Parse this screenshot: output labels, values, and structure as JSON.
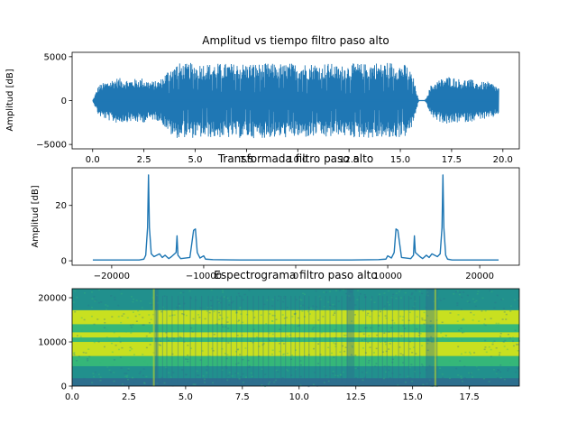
{
  "chart_data": [
    {
      "type": "line",
      "title": "Amplitud vs tiempo filtro paso alto",
      "xlabel": "",
      "ylabel": "Amplitud [dB]",
      "xlim": [
        -1.0,
        20.8
      ],
      "ylim": [
        -5500,
        5500
      ],
      "xticks": [
        0.0,
        2.5,
        5.0,
        7.5,
        10.0,
        12.5,
        15.0,
        17.5,
        20.0
      ],
      "xtick_labels": [
        "0.0",
        "2.5",
        "5.0",
        "7.5",
        "10.0",
        "12.5",
        "15.0",
        "17.5",
        "20.0"
      ],
      "yticks": [
        -5000,
        0,
        5000
      ],
      "ytick_labels": [
        "−5000",
        "0",
        "5000"
      ],
      "color": "#1f77b4",
      "series": [
        {
          "x": [
            0.0,
            0.3,
            0.6,
            0.9,
            1.2,
            1.5,
            1.8,
            2.1,
            2.4,
            2.7,
            3.0,
            3.3,
            3.6,
            3.9,
            4.2,
            4.5,
            4.8,
            5.1,
            5.4,
            5.7,
            6.0,
            6.3,
            6.6,
            6.9,
            7.2,
            7.5,
            7.8,
            8.1,
            8.4,
            8.7,
            9.0,
            9.3,
            9.6,
            9.9,
            10.2,
            10.5,
            10.8,
            11.1,
            11.4,
            11.7,
            12.0,
            12.3,
            12.6,
            12.9,
            13.2,
            13.5,
            13.8,
            14.1,
            14.4,
            14.7,
            15.0,
            15.3,
            15.6,
            15.9,
            16.2,
            16.5,
            16.8,
            17.1,
            17.4,
            17.7,
            18.0,
            18.3,
            18.6,
            18.9,
            19.2,
            19.5,
            19.8
          ],
          "envelope": [
            0,
            1800,
            2100,
            2400,
            2600,
            2500,
            2400,
            2500,
            2600,
            2300,
            2200,
            2400,
            3300,
            4200,
            4300,
            4200,
            4300,
            4200,
            4300,
            4200,
            4300,
            4200,
            4300,
            4200,
            4300,
            4200,
            4300,
            4200,
            4300,
            4200,
            4300,
            4200,
            4300,
            4200,
            4300,
            4200,
            4300,
            4200,
            4300,
            4200,
            3900,
            4100,
            4200,
            4300,
            4200,
            4300,
            4400,
            4200,
            4500,
            4300,
            4200,
            4100,
            3000,
            0,
            0,
            1800,
            2300,
            2600,
            2800,
            2600,
            2400,
            2500,
            2300,
            2100,
            2200,
            2000,
            1500
          ]
        }
      ]
    },
    {
      "type": "line",
      "title": "Transformada filtro paso alto",
      "xlabel": "",
      "ylabel": "Amplitud [dB]",
      "xlim": [
        -24300,
        24300
      ],
      "ylim": [
        -1.6,
        33.6
      ],
      "xticks": [
        -20000,
        -10000,
        0,
        10000,
        20000
      ],
      "xtick_labels": [
        "−20000",
        "−10000",
        "0",
        "10000",
        "20000"
      ],
      "yticks": [
        0,
        20
      ],
      "ytick_labels": [
        "0",
        "20"
      ],
      "color": "#1f77b4",
      "series": [
        {
          "x": [
            -22050,
            -17000,
            -16500,
            -16300,
            -16100,
            -16000,
            -15900,
            -15700,
            -15400,
            -14800,
            -14500,
            -14200,
            -13800,
            -13500,
            -13000,
            -12900,
            -12800,
            -12500,
            -11500,
            -11100,
            -10900,
            -10700,
            -10400,
            -10000,
            -9800,
            -9000,
            -6000,
            0,
            6000,
            9000,
            9800,
            10000,
            10400,
            10700,
            10900,
            11100,
            11500,
            12500,
            12800,
            12900,
            13000,
            13500,
            13800,
            14200,
            14500,
            14800,
            15400,
            15700,
            15900,
            16000,
            16100,
            16300,
            16500,
            17000,
            22050
          ],
          "y": [
            0.3,
            0.3,
            0.6,
            2.0,
            12.0,
            31.0,
            12.0,
            2.5,
            1.5,
            2.5,
            1.2,
            2.0,
            0.8,
            1.5,
            3.0,
            9.0,
            2.0,
            0.8,
            1.2,
            11.0,
            11.5,
            3.0,
            1.0,
            1.8,
            0.6,
            0.4,
            0.3,
            0.3,
            0.3,
            0.4,
            0.6,
            1.8,
            1.0,
            3.0,
            11.5,
            11.0,
            1.2,
            0.8,
            2.0,
            9.0,
            3.0,
            1.5,
            0.8,
            2.0,
            1.2,
            2.5,
            1.5,
            2.5,
            12.0,
            31.0,
            12.0,
            2.0,
            0.6,
            0.3,
            0.3
          ]
        }
      ]
    },
    {
      "type": "heatmap",
      "title": "Espectrograma filtro paso alto",
      "xlabel": "",
      "ylabel": "",
      "xlim": [
        0,
        19.7
      ],
      "ylim": [
        0,
        22050
      ],
      "xticks": [
        0.0,
        2.5,
        5.0,
        7.5,
        10.0,
        12.5,
        15.0,
        17.5
      ],
      "xtick_labels": [
        "0.0",
        "2.5",
        "5.0",
        "7.5",
        "10.0",
        "12.5",
        "15.0",
        "17.5"
      ],
      "yticks": [
        0,
        10000,
        20000
      ],
      "ytick_labels": [
        "0",
        "10000",
        "20000"
      ],
      "colormap": "viridis",
      "colors": {
        "low": "#2d6f8e",
        "mid": "#21908d",
        "high": "#35b779",
        "peak": "#c8e020"
      },
      "bands": [
        {
          "freq_from": 0,
          "freq_to": 1800,
          "level": "low"
        },
        {
          "freq_from": 1800,
          "freq_to": 4500,
          "level": "mid"
        },
        {
          "freq_from": 4500,
          "freq_to": 6800,
          "level": "high"
        },
        {
          "freq_from": 6800,
          "freq_to": 10000,
          "level": "peak"
        },
        {
          "freq_from": 10000,
          "freq_to": 11000,
          "level": "high"
        },
        {
          "freq_from": 11000,
          "freq_to": 12200,
          "level": "peak"
        },
        {
          "freq_from": 12200,
          "freq_to": 14000,
          "level": "high"
        },
        {
          "freq_from": 14000,
          "freq_to": 17200,
          "level": "peak"
        },
        {
          "freq_from": 17200,
          "freq_to": 22050,
          "level": "mid"
        }
      ],
      "quiet_segments": [
        [
          3.6,
          3.8
        ],
        [
          12.1,
          12.4
        ],
        [
          15.6,
          16.1
        ]
      ],
      "onsets": [
        3.6,
        16.0
      ]
    }
  ]
}
